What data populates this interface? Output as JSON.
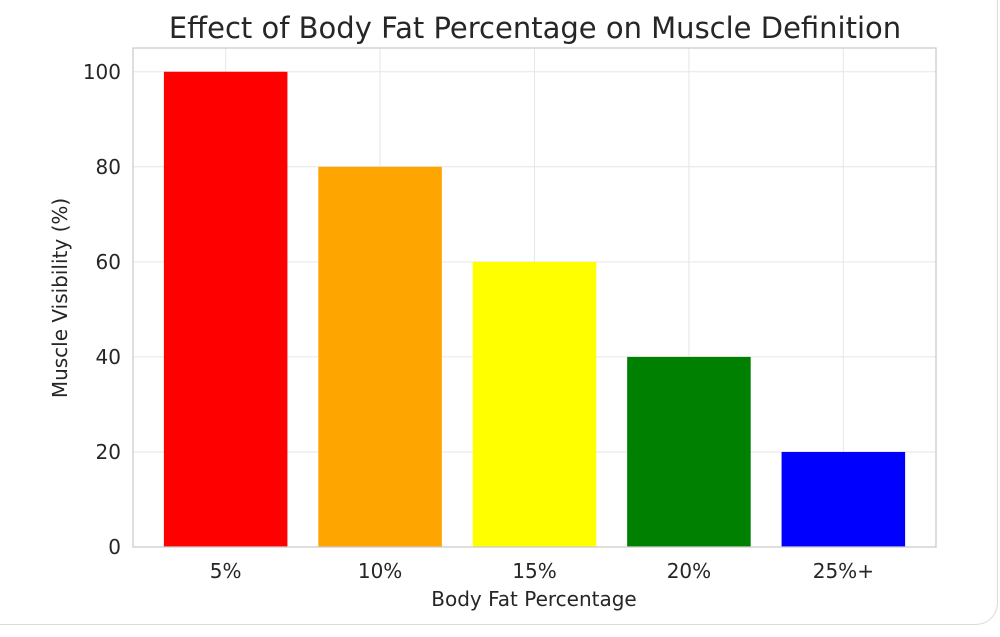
{
  "chart_data": {
    "type": "bar",
    "title": "Effect of Body Fat Percentage on Muscle Definition",
    "xlabel": "Body Fat Percentage",
    "ylabel": "Muscle Visibility (%)",
    "categories": [
      "5%",
      "10%",
      "15%",
      "20%",
      "25%+"
    ],
    "values": [
      100,
      80,
      60,
      40,
      20
    ],
    "colors": [
      "#ff0000",
      "#ffa500",
      "#ffff00",
      "#008000",
      "#0000ff"
    ],
    "ylim": [
      0,
      105
    ],
    "yticks": [
      0,
      20,
      40,
      60,
      80,
      100
    ],
    "grid": true,
    "legend": "none"
  }
}
